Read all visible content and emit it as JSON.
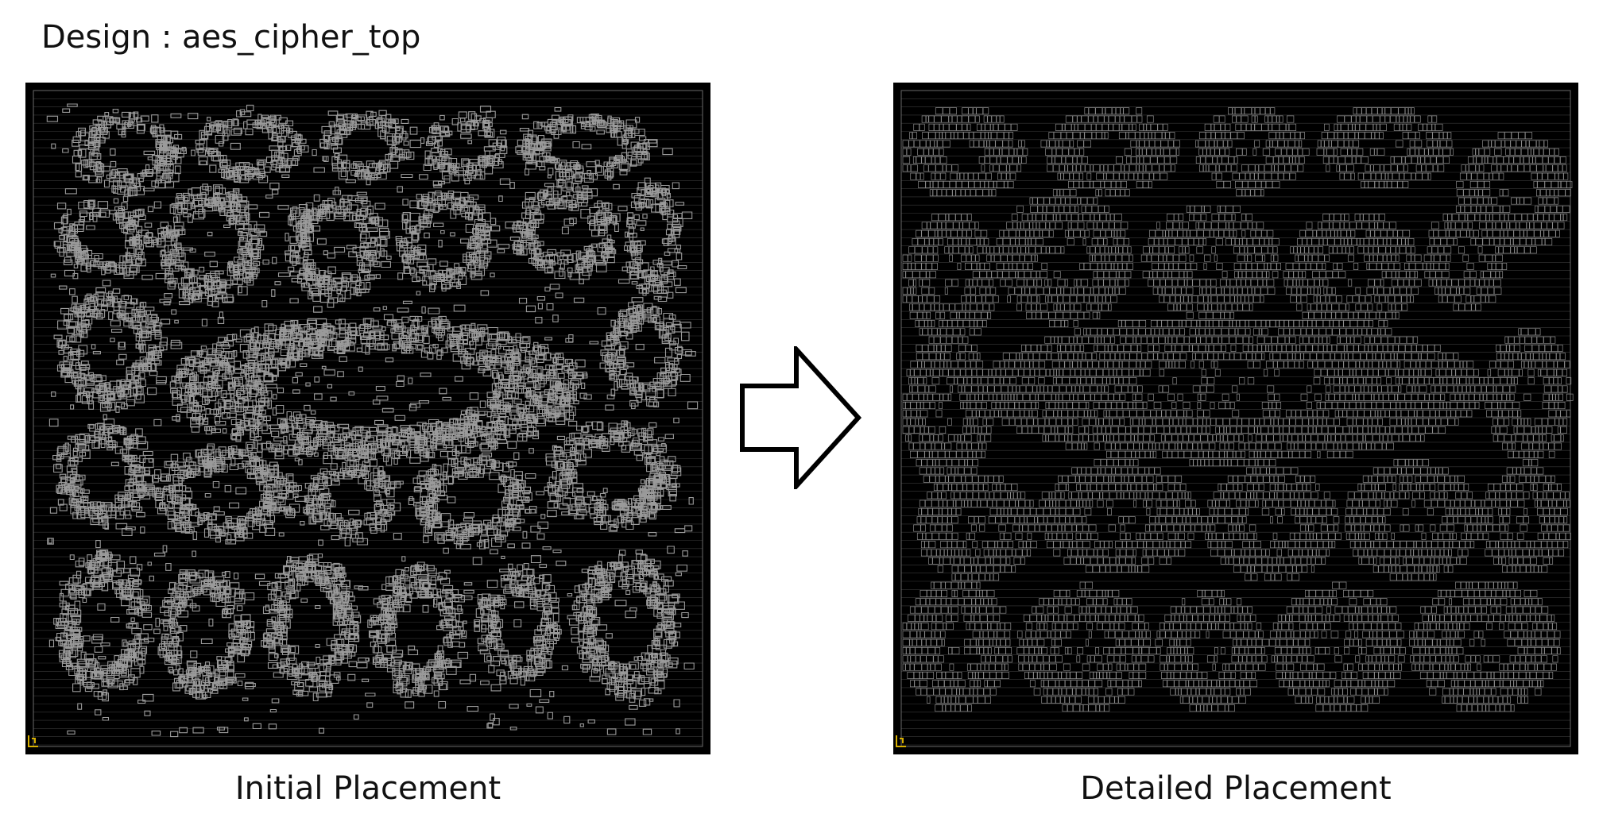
{
  "design": {
    "title": "Design : aes_cipher_top"
  },
  "panels": [
    {
      "id": "initial",
      "caption": "Initial Placement",
      "style": "initial"
    },
    {
      "id": "detailed",
      "caption": "Detailed Placement",
      "style": "detailed"
    }
  ],
  "colors": {
    "background": "#ffffff",
    "die": "#000000",
    "row_lines": "#6a6a6a",
    "initial_cells": "#9a9a9a",
    "detailed_cells": "#8c8c8c",
    "corner_marker": "#d8b000",
    "arrow_stroke": "#000000",
    "arrow_fill": "#ffffff"
  },
  "icons": {
    "flow_arrow": "right-arrow-outline-icon",
    "origin_marker": "corner-origin-marker-icon"
  }
}
